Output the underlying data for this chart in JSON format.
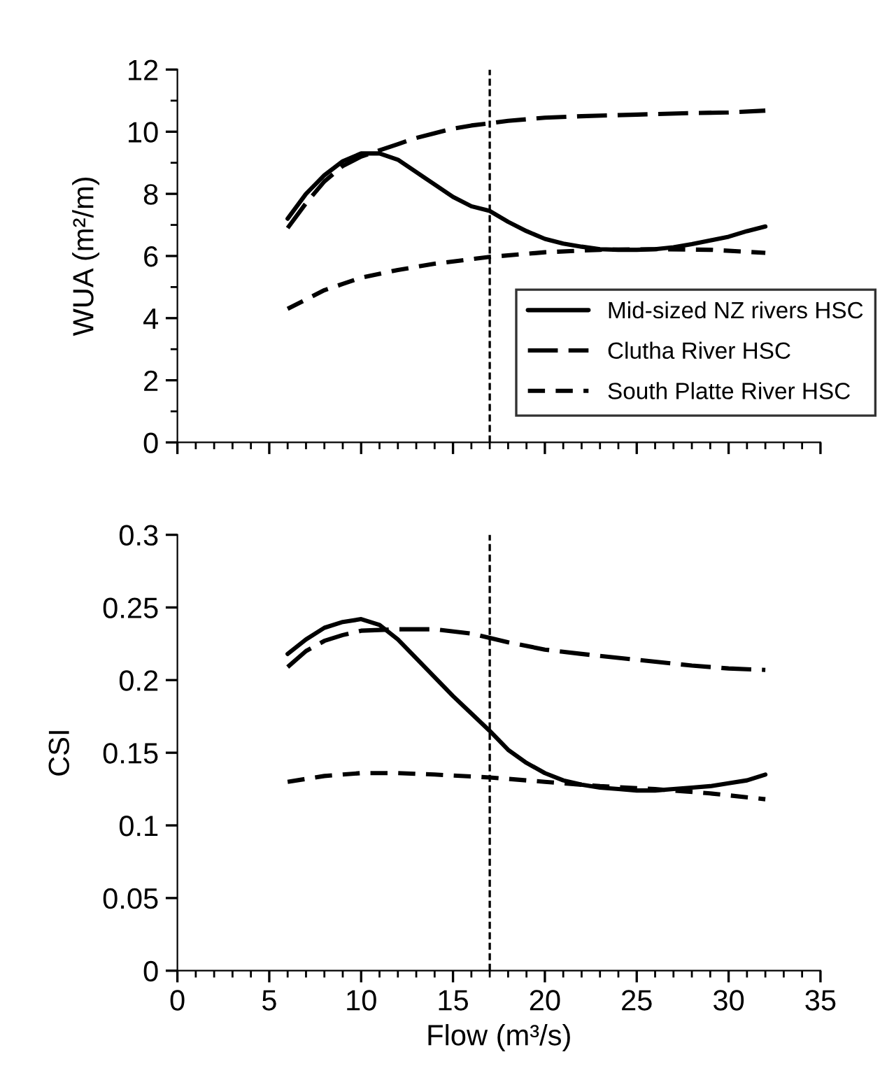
{
  "chart_data": [
    {
      "type": "line",
      "ylabel": "WUA (m²/m)",
      "xlim": [
        0,
        35
      ],
      "xticks": [
        0,
        5,
        10,
        15,
        20,
        25,
        30,
        35
      ],
      "ylim": [
        0,
        12
      ],
      "yticks": [
        0,
        2,
        4,
        6,
        8,
        10,
        12
      ],
      "tick_labels": "y",
      "grid": false,
      "legend": "bottom right",
      "marker": "none",
      "ref_lines": [
        {
          "axis": "x",
          "value": 17,
          "color": "#000000",
          "line_style": "dashed"
        }
      ],
      "series": [
        {
          "name": "Mid-sized NZ rivers HSC",
          "color": "#000000",
          "line_style": "solid",
          "x": [
            6,
            7,
            8,
            9,
            10,
            11,
            12,
            13,
            14,
            15,
            16,
            17,
            18,
            19,
            20,
            21,
            22,
            23,
            24,
            25,
            26,
            27,
            28,
            29,
            30,
            31,
            32
          ],
          "values": [
            7.2,
            8.0,
            8.6,
            9.05,
            9.3,
            9.3,
            9.1,
            8.7,
            8.3,
            7.9,
            7.6,
            7.45,
            7.1,
            6.8,
            6.55,
            6.4,
            6.3,
            6.22,
            6.2,
            6.2,
            6.22,
            6.28,
            6.38,
            6.5,
            6.62,
            6.8,
            6.95
          ]
        },
        {
          "name": "Clutha River HSC",
          "color": "#000000",
          "line_style": "dashed",
          "x": [
            6,
            7,
            8,
            9,
            10,
            11,
            12,
            13,
            14,
            15,
            16,
            17,
            18,
            20,
            22,
            25,
            28,
            30,
            32
          ],
          "values": [
            6.9,
            7.7,
            8.4,
            8.9,
            9.2,
            9.4,
            9.6,
            9.8,
            9.95,
            10.1,
            10.2,
            10.27,
            10.35,
            10.45,
            10.5,
            10.55,
            10.6,
            10.62,
            10.68
          ]
        },
        {
          "name": "South Platte River HSC",
          "color": "#000000",
          "line_style": "dotted",
          "x": [
            6,
            7,
            8,
            9,
            10,
            12,
            14,
            17,
            20,
            23,
            26,
            29,
            32
          ],
          "values": [
            4.3,
            4.6,
            4.9,
            5.1,
            5.3,
            5.55,
            5.75,
            5.97,
            6.12,
            6.2,
            6.22,
            6.2,
            6.1
          ]
        }
      ]
    },
    {
      "type": "line",
      "xlabel": "Flow (m³/s)",
      "ylabel": "CSI",
      "xlim": [
        0,
        35
      ],
      "xticks": [
        0,
        5,
        10,
        15,
        20,
        25,
        30,
        35
      ],
      "ylim": [
        0,
        0.3
      ],
      "yticks": [
        0,
        0.05,
        0.1,
        0.15,
        0.2,
        0.25,
        0.3
      ],
      "grid": false,
      "marker": "none",
      "ref_lines": [
        {
          "axis": "x",
          "value": 17,
          "color": "#000000",
          "line_style": "dashed"
        }
      ],
      "series": [
        {
          "color": "#000000",
          "line_style": "solid",
          "x": [
            6,
            7,
            8,
            9,
            10,
            11,
            12,
            13,
            14,
            15,
            16,
            17,
            18,
            19,
            20,
            21,
            22,
            23,
            24,
            25,
            26,
            27,
            28,
            29,
            30,
            31,
            32
          ],
          "values": [
            0.218,
            0.228,
            0.236,
            0.24,
            0.242,
            0.238,
            0.228,
            0.215,
            0.202,
            0.189,
            0.177,
            0.165,
            0.152,
            0.143,
            0.136,
            0.131,
            0.128,
            0.126,
            0.125,
            0.124,
            0.124,
            0.125,
            0.126,
            0.127,
            0.129,
            0.131,
            0.135
          ]
        },
        {
          "color": "#000000",
          "line_style": "dashed",
          "x": [
            6,
            7,
            8,
            9,
            10,
            12,
            14,
            16,
            17,
            18,
            20,
            22,
            25,
            28,
            30,
            32
          ],
          "values": [
            0.209,
            0.22,
            0.227,
            0.231,
            0.234,
            0.235,
            0.235,
            0.232,
            0.229,
            0.226,
            0.221,
            0.218,
            0.214,
            0.21,
            0.208,
            0.207
          ]
        },
        {
          "color": "#000000",
          "line_style": "dotted",
          "x": [
            6,
            8,
            10,
            12,
            14,
            17,
            20,
            23,
            26,
            29,
            32
          ],
          "values": [
            0.13,
            0.134,
            0.136,
            0.136,
            0.135,
            0.133,
            0.13,
            0.127,
            0.125,
            0.122,
            0.118
          ]
        }
      ]
    }
  ]
}
